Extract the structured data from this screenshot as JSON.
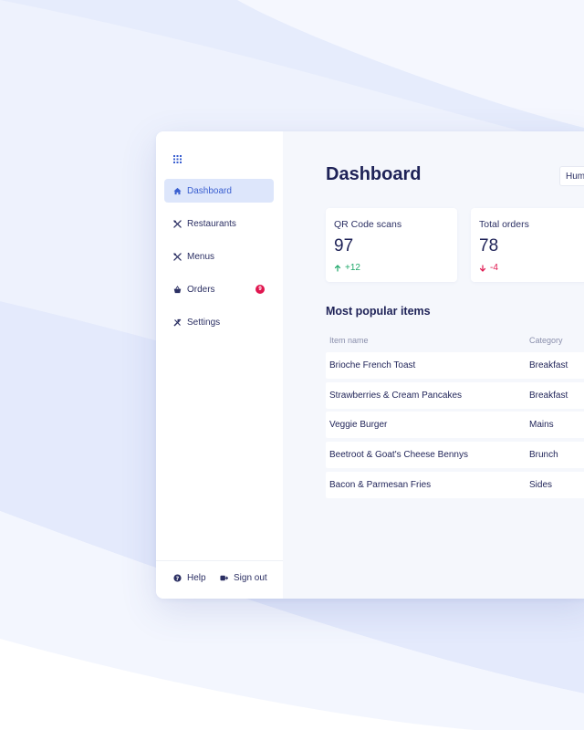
{
  "sidebar": {
    "apps_icon": "grid-icon",
    "items": [
      {
        "label": "Dashboard",
        "icon": "home-icon",
        "active": true
      },
      {
        "label": "Restaurants",
        "icon": "utensils-icon"
      },
      {
        "label": "Menus",
        "icon": "utensils-icon"
      },
      {
        "label": "Orders",
        "icon": "basket-icon",
        "badge": "9"
      },
      {
        "label": "Settings",
        "icon": "tools-icon"
      }
    ],
    "footer": {
      "help_label": "Help",
      "help_icon": "help-circle-icon",
      "signout_label": "Sign out",
      "signout_icon": "sign-out-icon"
    }
  },
  "main": {
    "title": "Dashboard",
    "filter_value": "Hum",
    "stats": [
      {
        "label": "QR Code scans",
        "value": "97",
        "delta": "+12",
        "trend": "up"
      },
      {
        "label": "Total orders",
        "value": "78",
        "delta": "-4",
        "trend": "down"
      }
    ],
    "popular": {
      "title": "Most popular items",
      "columns": [
        "Item name",
        "Category"
      ],
      "rows": [
        {
          "name": "Brioche French Toast",
          "category": "Breakfast"
        },
        {
          "name": "Strawberries & Cream Pancakes",
          "category": "Breakfast"
        },
        {
          "name": "Veggie Burger",
          "category": "Mains"
        },
        {
          "name": "Beetroot & Goat's Cheese Bennys",
          "category": "Brunch"
        },
        {
          "name": "Bacon & Parmesan Fries",
          "category": "Sides"
        }
      ]
    }
  },
  "colors": {
    "accent": "#3a5fd0",
    "active_bg": "#dde6fb",
    "positive": "#1fa86a",
    "negative": "#e0164f",
    "text": "#1e2257"
  }
}
